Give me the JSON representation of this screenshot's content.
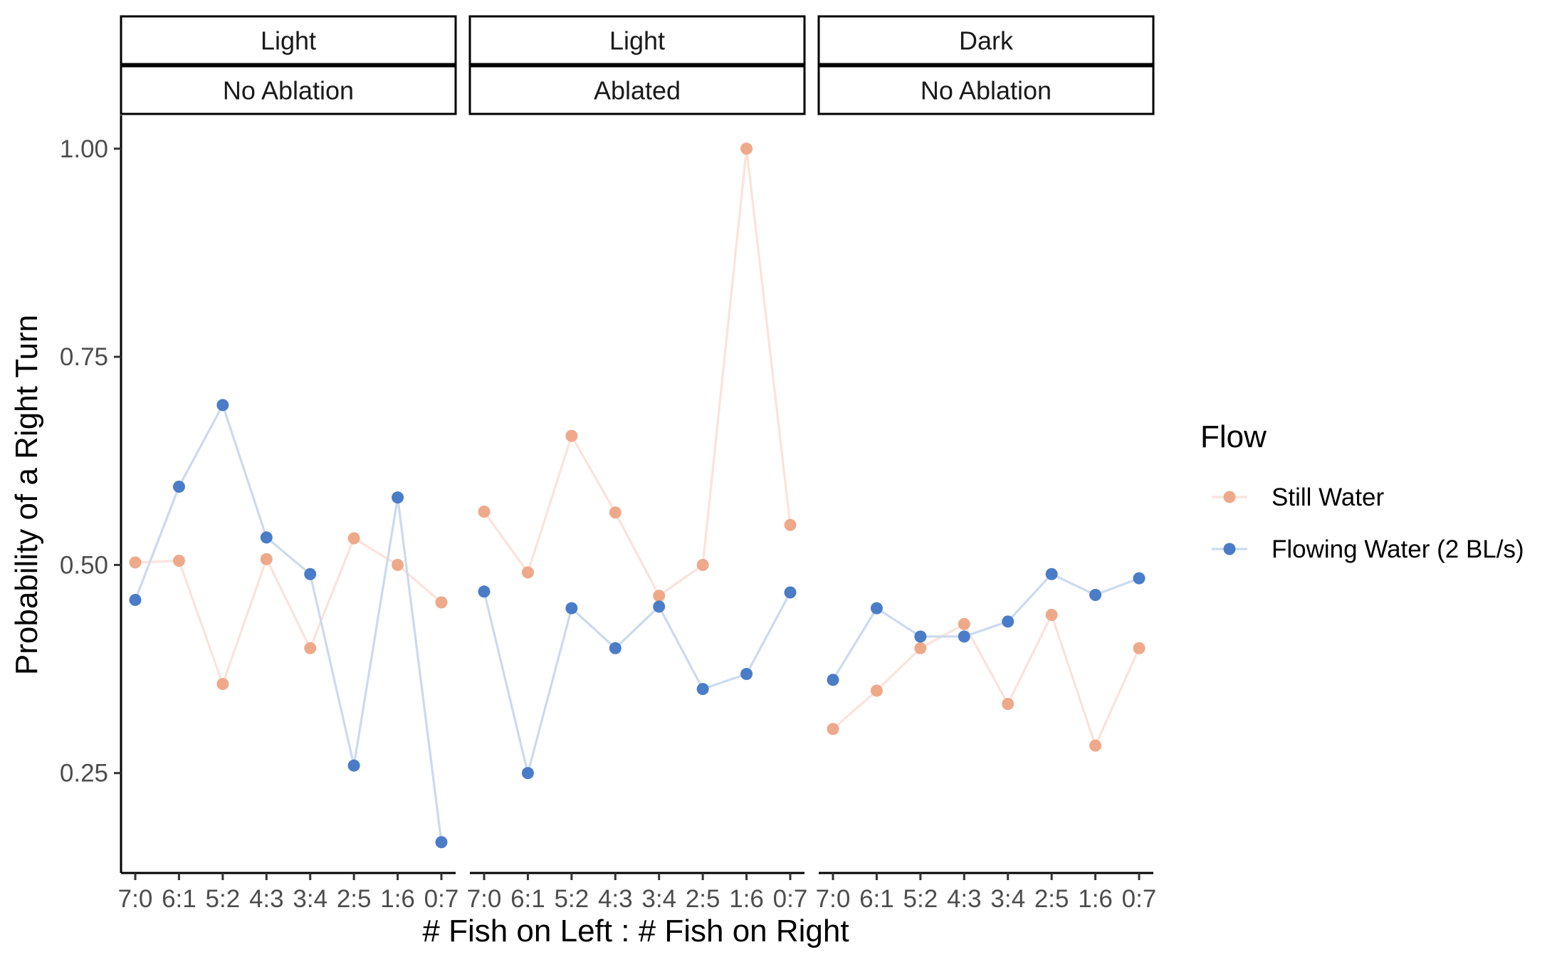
{
  "chart_data": {
    "type": "line",
    "xlabel": "# Fish on Left : # Fish on Right",
    "ylabel": "Probability of a Right Turn",
    "categories": [
      "7:0",
      "6:1",
      "5:2",
      "4:3",
      "3:4",
      "2:5",
      "1:6",
      "0:7"
    ],
    "ylim": [
      0.13,
      1.04
    ],
    "yticks": [
      0.25,
      0.5,
      0.75,
      1.0
    ],
    "ytick_labels": [
      "0.25",
      "0.50",
      "0.75",
      "1.00"
    ],
    "grid": false,
    "legend": {
      "title": "Flow",
      "placement": "right"
    },
    "series_styles": [
      {
        "name": "Still Water",
        "point_color": "#eea98a",
        "line_color": "#fbe3da"
      },
      {
        "name": "Flowing Water (2 BL/s)",
        "point_color": "#4a7cc8",
        "line_color": "#cbdaee"
      }
    ],
    "panels": [
      {
        "strips": [
          "Light",
          "No Ablation"
        ],
        "series": [
          {
            "name": "Still Water",
            "values": [
              0.503,
              0.505,
              0.357,
              0.507,
              0.4,
              0.532,
              0.5,
              0.455
            ]
          },
          {
            "name": "Flowing Water (2 BL/s)",
            "values": [
              0.458,
              0.594,
              0.692,
              0.533,
              0.489,
              0.259,
              0.581,
              0.167
            ]
          }
        ]
      },
      {
        "strips": [
          "Light",
          "Ablated"
        ],
        "series": [
          {
            "name": "Still Water",
            "values": [
              0.564,
              0.491,
              0.655,
              0.563,
              0.463,
              0.5,
              1.0,
              0.548
            ]
          },
          {
            "name": "Flowing Water (2 BL/s)",
            "values": [
              0.468,
              0.25,
              0.448,
              0.4,
              0.45,
              0.351,
              0.369,
              0.467
            ]
          }
        ]
      },
      {
        "strips": [
          "Dark",
          "No Ablation"
        ],
        "series": [
          {
            "name": "Still Water",
            "values": [
              0.303,
              0.349,
              0.4,
              0.429,
              0.333,
              0.44,
              0.283,
              0.4
            ]
          },
          {
            "name": "Flowing Water (2 BL/s)",
            "values": [
              0.362,
              0.448,
              0.414,
              0.414,
              0.432,
              0.489,
              0.464,
              0.484
            ]
          }
        ]
      }
    ]
  }
}
